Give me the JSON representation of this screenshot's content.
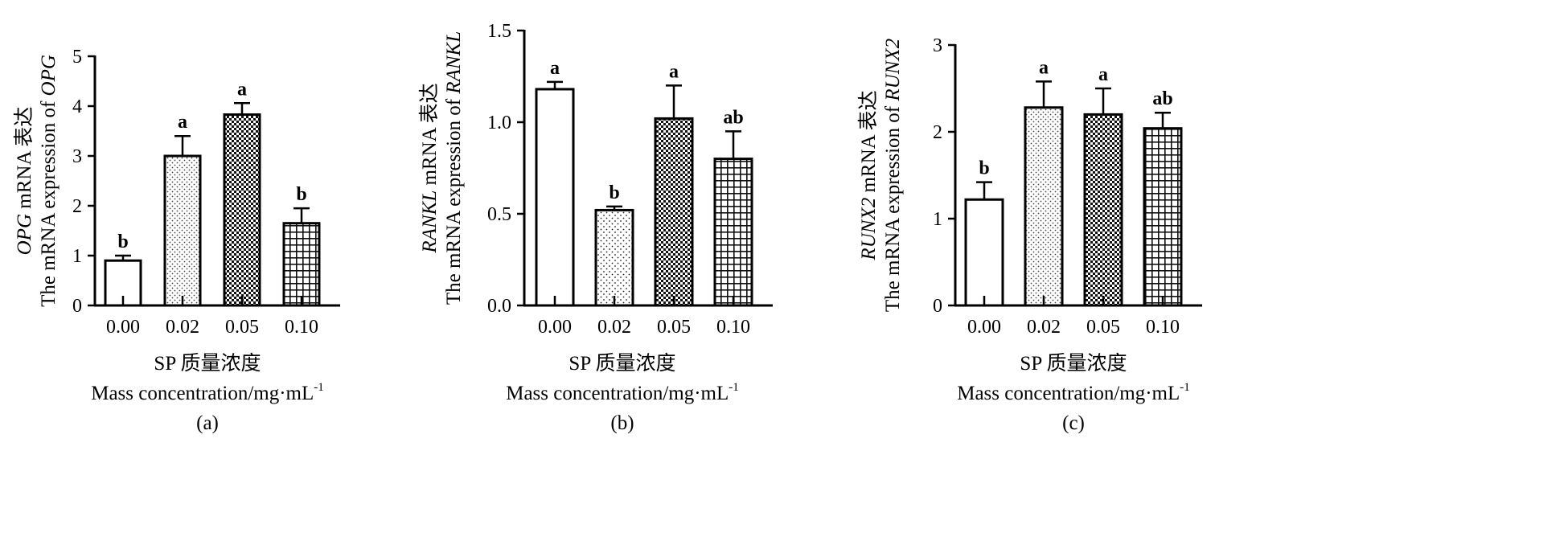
{
  "chart_data": [
    {
      "type": "bar",
      "panel_label": "(a)",
      "categories": [
        "0.00",
        "0.02",
        "0.05",
        "0.10"
      ],
      "values": [
        0.9,
        3.0,
        3.83,
        1.65
      ],
      "errors": [
        0.1,
        0.4,
        0.23,
        0.3
      ],
      "significance": [
        "b",
        "a",
        "a",
        "b"
      ],
      "ylim": [
        0,
        5
      ],
      "yticks": [
        "0",
        "1",
        "2",
        "3",
        "4",
        "5"
      ],
      "ylabel_line1_gene": "OPG",
      "ylabel_line1_rest": " mRNA 表达",
      "ylabel_line2_rest": "The mRNA expression of ",
      "ylabel_line2_gene": "OPG",
      "xlabel_line1": "SP 质量浓度",
      "xlabel_line2": "Mass concentration/mg·mL",
      "xlabel_superscript": "-1",
      "fills": [
        "none",
        "light-dots",
        "checker",
        "grid"
      ]
    },
    {
      "type": "bar",
      "panel_label": "(b)",
      "categories": [
        "0.00",
        "0.02",
        "0.05",
        "0.10"
      ],
      "values": [
        1.18,
        0.52,
        1.02,
        0.8
      ],
      "errors": [
        0.04,
        0.02,
        0.18,
        0.15
      ],
      "significance": [
        "a",
        "b",
        "a",
        "ab"
      ],
      "ylim": [
        0,
        1.5
      ],
      "yticks": [
        "0.0",
        "0.5",
        "1.0",
        "1.5"
      ],
      "ylabel_line1_gene": "RANKL",
      "ylabel_line1_rest": " mRNA 表达",
      "ylabel_line2_rest": "The mRNA expression of ",
      "ylabel_line2_gene": "RANKL",
      "xlabel_line1": "SP 质量浓度",
      "xlabel_line2": "Mass concentration/mg·mL",
      "xlabel_superscript": "-1",
      "fills": [
        "none",
        "dots",
        "checker",
        "grid"
      ]
    },
    {
      "type": "bar",
      "panel_label": "(c)",
      "categories": [
        "0.00",
        "0.02",
        "0.05",
        "0.10"
      ],
      "values": [
        1.22,
        2.28,
        2.2,
        2.04
      ],
      "errors": [
        0.2,
        0.3,
        0.3,
        0.18
      ],
      "significance": [
        "b",
        "a",
        "a",
        "ab"
      ],
      "ylim": [
        0,
        3
      ],
      "yticks": [
        "0",
        "1",
        "2",
        "3"
      ],
      "ylabel_line1_gene": "RUNX2",
      "ylabel_line1_rest": " mRNA 表达",
      "ylabel_line2_rest": "The mRNA expression of ",
      "ylabel_line2_gene": "RUNX2",
      "xlabel_line1": "SP 质量浓度",
      "xlabel_line2": "Mass concentration/mg·mL",
      "xlabel_superscript": "-1",
      "fills": [
        "none",
        "light-dots",
        "checker",
        "grid"
      ]
    }
  ]
}
